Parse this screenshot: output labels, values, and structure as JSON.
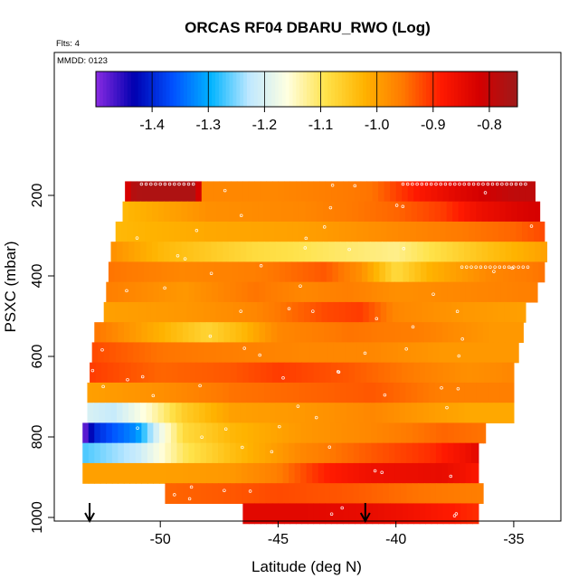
{
  "chart_data": {
    "type": "heatmap",
    "title": "ORCAS RF04 DBARU_RWO (Log)",
    "flights_note": "Flts: 4",
    "date_note": "MMDD: 0123",
    "xlabel": "Latitude (deg N)",
    "ylabel": "PSXC (mbar)",
    "xlim": [
      -54.5,
      -33.0
    ],
    "ylim": [
      1000,
      0
    ],
    "x_ticks": [
      -50,
      -45,
      -40,
      -35
    ],
    "y_ticks": [
      200,
      400,
      600,
      800,
      1000
    ],
    "colorbar": {
      "range": [
        -1.5,
        -0.75
      ],
      "ticks": [
        -1.4,
        -1.3,
        -1.2,
        -1.1,
        -1.0,
        -0.9,
        -0.8
      ],
      "tick_labels": [
        "-1.4",
        "-1.3",
        "-1.2",
        "-1.1",
        "-1.0",
        "-0.9",
        "-0.8"
      ],
      "colors": [
        "#8a2be2",
        "#0000b0",
        "#0050ff",
        "#00b4ff",
        "#bfe8ff",
        "#ffffe0",
        "#ffe24a",
        "#ffb300",
        "#ff7a00",
        "#ff1a00",
        "#d40000",
        "#9e1a1a"
      ]
    },
    "arrows_latitude": [
      -53.0,
      -41.3
    ],
    "bands": [
      {
        "p": 190,
        "start": -51.5,
        "end": -34.1,
        "v": [
          [
            -51.5,
            -0.85
          ],
          [
            -51.2,
            -0.78
          ],
          [
            -50.8,
            -0.77
          ],
          [
            -48.4,
            -0.77
          ],
          [
            -48.3,
            -0.97
          ],
          [
            -45,
            -0.97
          ],
          [
            -41,
            -0.95
          ],
          [
            -39,
            -0.88
          ],
          [
            -37,
            -0.83
          ],
          [
            -35,
            -0.79
          ]
        ]
      },
      {
        "p": 240,
        "start": -51.6,
        "end": -33.9,
        "v": [
          [
            -51.6,
            -1.03
          ],
          [
            -48,
            -0.98
          ],
          [
            -44,
            -0.97
          ],
          [
            -40,
            -0.94
          ],
          [
            -38,
            -0.91
          ],
          [
            -36.5,
            -0.86
          ],
          [
            -34.8,
            -0.83
          ],
          [
            -33.9,
            -0.82
          ]
        ]
      },
      {
        "p": 290,
        "start": -51.9,
        "end": -33.7,
        "v": [
          [
            -51.9,
            -1.03
          ],
          [
            -48,
            -1.01
          ],
          [
            -44,
            -1.0
          ],
          [
            -41,
            -0.98
          ],
          [
            -38,
            -0.96
          ],
          [
            -35,
            -0.94
          ],
          [
            -33.7,
            -0.92
          ]
        ]
      },
      {
        "p": 340,
        "start": -52.1,
        "end": -33.6,
        "v": [
          [
            -52.1,
            -0.98
          ],
          [
            -50,
            -1.03
          ],
          [
            -46,
            -1.08
          ],
          [
            -43,
            -1.1
          ],
          [
            -40,
            -1.12
          ],
          [
            -38,
            -1.08
          ],
          [
            -36,
            -1.04
          ],
          [
            -33.6,
            -1.0
          ]
        ]
      },
      {
        "p": 390,
        "start": -52.2,
        "end": -33.7,
        "v": [
          [
            -52.2,
            -0.95
          ],
          [
            -49,
            -0.97
          ],
          [
            -46,
            -0.96
          ],
          [
            -43,
            -0.93
          ],
          [
            -41.5,
            -0.98
          ],
          [
            -40,
            -1.08
          ],
          [
            -38.5,
            -1.02
          ],
          [
            -36,
            -0.97
          ],
          [
            -33.7,
            -0.95
          ]
        ]
      },
      {
        "p": 440,
        "start": -52.3,
        "end": -34.0,
        "v": [
          [
            -52.3,
            -0.96
          ],
          [
            -49,
            -0.99
          ],
          [
            -46,
            -0.95
          ],
          [
            -44,
            -0.97
          ],
          [
            -42,
            -0.96
          ],
          [
            -40,
            -0.98
          ],
          [
            -37,
            -0.97
          ],
          [
            -34,
            -0.96
          ]
        ]
      },
      {
        "p": 490,
        "start": -52.4,
        "end": -34.5,
        "v": [
          [
            -52.4,
            -1.0
          ],
          [
            -49,
            -0.99
          ],
          [
            -46,
            -0.97
          ],
          [
            -43,
            -0.92
          ],
          [
            -41.5,
            -0.91
          ],
          [
            -40,
            -0.97
          ],
          [
            -37,
            -0.99
          ],
          [
            -34.5,
            -1.0
          ]
        ]
      },
      {
        "p": 540,
        "start": -52.8,
        "end": -34.6,
        "v": [
          [
            -52.8,
            -0.95
          ],
          [
            -50,
            -1.02
          ],
          [
            -48,
            -1.07
          ],
          [
            -46.5,
            -1.03
          ],
          [
            -45,
            -0.97
          ],
          [
            -42,
            -0.95
          ],
          [
            -39,
            -0.96
          ],
          [
            -36,
            -0.99
          ],
          [
            -34.6,
            -0.99
          ]
        ]
      },
      {
        "p": 590,
        "start": -52.9,
        "end": -34.8,
        "v": [
          [
            -52.9,
            -0.92
          ],
          [
            -50,
            -0.95
          ],
          [
            -47,
            -0.96
          ],
          [
            -44,
            -0.97
          ],
          [
            -41,
            -0.97
          ],
          [
            -38,
            -0.99
          ],
          [
            -34.8,
            -0.99
          ]
        ]
      },
      {
        "p": 640,
        "start": -53.0,
        "end": -35.0,
        "v": [
          [
            -53,
            -0.91
          ],
          [
            -50,
            -0.94
          ],
          [
            -47,
            -0.93
          ],
          [
            -45,
            -0.91
          ],
          [
            -42,
            -0.93
          ],
          [
            -39,
            -0.96
          ],
          [
            -37,
            -0.98
          ],
          [
            -35,
            -0.97
          ]
        ]
      },
      {
        "p": 690,
        "start": -53.1,
        "end": -35.0,
        "v": [
          [
            -53.1,
            -1.0
          ],
          [
            -50,
            -0.98
          ],
          [
            -47,
            -0.95
          ],
          [
            -44,
            -0.94
          ],
          [
            -41,
            -0.93
          ],
          [
            -38,
            -0.96
          ],
          [
            -35,
            -0.96
          ]
        ]
      },
      {
        "p": 740,
        "start": -53.1,
        "end": -35.0,
        "v": [
          [
            -53.1,
            -1.2
          ],
          [
            -52,
            -1.22
          ],
          [
            -50.5,
            -1.15
          ],
          [
            -49,
            -1.06
          ],
          [
            -47,
            -1.0
          ],
          [
            -44,
            -0.99
          ],
          [
            -41,
            -0.97
          ],
          [
            -38,
            -1.0
          ],
          [
            -36.7,
            -1.01
          ]
        ]
      },
      {
        "p": 790,
        "start": -53.3,
        "end": -36.2,
        "v": [
          [
            -53.3,
            -1.5
          ],
          [
            -52.8,
            -1.4
          ],
          [
            -52,
            -1.36
          ],
          [
            -51,
            -1.32
          ],
          [
            -50,
            -1.18
          ],
          [
            -49,
            -1.08
          ],
          [
            -47,
            -1.03
          ],
          [
            -44,
            -0.99
          ],
          [
            -41,
            -0.97
          ],
          [
            -38,
            -0.94
          ],
          [
            -36.2,
            -0.95
          ]
        ]
      },
      {
        "p": 840,
        "start": -53.3,
        "end": -36.5,
        "v": [
          [
            -53.3,
            -1.27
          ],
          [
            -51,
            -1.22
          ],
          [
            -49,
            -1.1
          ],
          [
            -47,
            -1.04
          ],
          [
            -44,
            -0.97
          ],
          [
            -41,
            -0.93
          ],
          [
            -38.5,
            -0.9
          ],
          [
            -37,
            -0.86
          ],
          [
            -36.5,
            -0.84
          ]
        ]
      },
      {
        "p": 890,
        "start": -53.3,
        "end": -36.5,
        "v": [
          [
            -53.3,
            -1.0
          ],
          [
            -50,
            -1.0
          ],
          [
            -47,
            -0.99
          ],
          [
            -45,
            -0.96
          ],
          [
            -43,
            -0.89
          ],
          [
            -41,
            -0.86
          ],
          [
            -38,
            -0.85
          ],
          [
            -36.5,
            -0.88
          ]
        ]
      },
      {
        "p": 940,
        "start": -49.8,
        "end": -36.3,
        "v": [
          [
            -49.8,
            -0.94
          ],
          [
            -47,
            -0.93
          ],
          [
            -45,
            -0.92
          ],
          [
            -42,
            -0.93
          ],
          [
            -39,
            -0.95
          ],
          [
            -36.3,
            -0.96
          ]
        ]
      },
      {
        "p": 990,
        "start": -46.5,
        "end": -36.5,
        "v": [
          [
            -46.5,
            -0.84
          ],
          [
            -44,
            -0.84
          ],
          [
            -41,
            -0.85
          ],
          [
            -39,
            -0.87
          ],
          [
            -36.5,
            -0.9
          ]
        ]
      }
    ]
  }
}
